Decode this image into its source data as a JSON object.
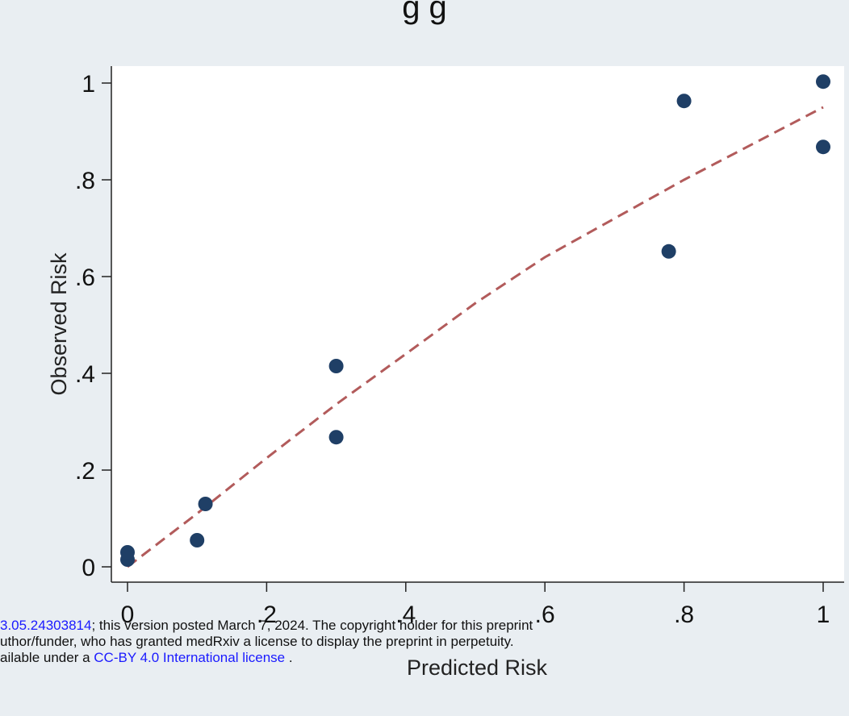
{
  "chart_data": {
    "type": "scatter",
    "title_fragment": "g g",
    "xlabel": "Predicted Risk",
    "ylabel": "Observed Risk",
    "xlim": [
      0,
      1
    ],
    "ylim": [
      0,
      1
    ],
    "x_ticks": [
      0,
      0.2,
      0.4,
      0.6,
      0.8,
      1
    ],
    "x_tick_labels": [
      "0",
      ".2",
      ".4",
      ".6",
      ".8",
      "1"
    ],
    "y_ticks": [
      0,
      0.2,
      0.4,
      0.6,
      0.8,
      1
    ],
    "y_tick_labels": [
      "0",
      ".2",
      ".4",
      ".6",
      ".8",
      "1"
    ],
    "grid": false,
    "point_color": "#1f3f66",
    "fit_line_color": "#b25b5b",
    "points": [
      {
        "x": 0.0,
        "y": 0.015
      },
      {
        "x": 0.0,
        "y": 0.03
      },
      {
        "x": 0.1,
        "y": 0.055
      },
      {
        "x": 0.112,
        "y": 0.13
      },
      {
        "x": 0.3,
        "y": 0.268
      },
      {
        "x": 0.3,
        "y": 0.415
      },
      {
        "x": 0.778,
        "y": 0.652
      },
      {
        "x": 0.8,
        "y": 0.963
      },
      {
        "x": 1.0,
        "y": 0.868
      },
      {
        "x": 1.0,
        "y": 1.003
      }
    ],
    "fit_line": {
      "style": "dashed",
      "points": [
        {
          "x": 0.0,
          "y": 0.0
        },
        {
          "x": 0.1,
          "y": 0.11
        },
        {
          "x": 0.2,
          "y": 0.225
        },
        {
          "x": 0.3,
          "y": 0.336
        },
        {
          "x": 0.4,
          "y": 0.44
        },
        {
          "x": 0.5,
          "y": 0.545
        },
        {
          "x": 0.6,
          "y": 0.64
        },
        {
          "x": 0.7,
          "y": 0.72
        },
        {
          "x": 0.8,
          "y": 0.8
        },
        {
          "x": 0.9,
          "y": 0.875
        },
        {
          "x": 1.0,
          "y": 0.95
        }
      ]
    }
  },
  "watermark": {
    "line1_link": "3.05.24303814",
    "line1_text": "; this version posted March 7, 2024. The copyright holder for this preprint",
    "line2_text": "uthor/funder, who has granted medRxiv a license to display the preprint in perpetuity.",
    "line3_text": "ailable under a ",
    "line3_link": "CC-BY 4.0 International license",
    "line3_tail": " ."
  }
}
